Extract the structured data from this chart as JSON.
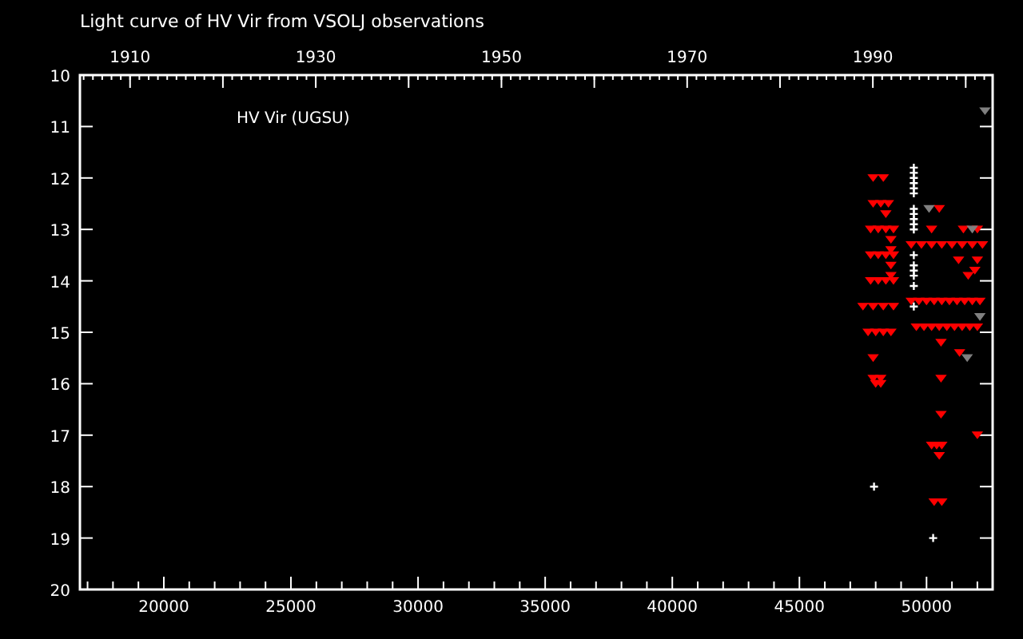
{
  "chart_data": {
    "type": "scatter",
    "title": "Light curve of HV Vir from VSOLJ observations",
    "annotations": [
      "HV Vir (UGSU)"
    ],
    "xlim": [
      16700,
      52600
    ],
    "xticks": [
      {
        "value": 17000,
        "label": null
      },
      {
        "value": 18000,
        "label": null
      },
      {
        "value": 19000,
        "label": null
      },
      {
        "value": 20000,
        "label": "20000"
      },
      {
        "value": 21000,
        "label": null
      },
      {
        "value": 22000,
        "label": null
      },
      {
        "value": 23000,
        "label": null
      },
      {
        "value": 24000,
        "label": null
      },
      {
        "value": 25000,
        "label": "25000"
      },
      {
        "value": 26000,
        "label": null
      },
      {
        "value": 27000,
        "label": null
      },
      {
        "value": 28000,
        "label": null
      },
      {
        "value": 29000,
        "label": null
      },
      {
        "value": 30000,
        "label": "30000"
      },
      {
        "value": 31000,
        "label": null
      },
      {
        "value": 32000,
        "label": null
      },
      {
        "value": 33000,
        "label": null
      },
      {
        "value": 34000,
        "label": null
      },
      {
        "value": 35000,
        "label": "35000"
      },
      {
        "value": 36000,
        "label": null
      },
      {
        "value": 37000,
        "label": null
      },
      {
        "value": 38000,
        "label": null
      },
      {
        "value": 39000,
        "label": null
      },
      {
        "value": 40000,
        "label": "40000"
      },
      {
        "value": 41000,
        "label": null
      },
      {
        "value": 42000,
        "label": null
      },
      {
        "value": 43000,
        "label": null
      },
      {
        "value": 44000,
        "label": null
      },
      {
        "value": 45000,
        "label": "45000"
      },
      {
        "value": 46000,
        "label": null
      },
      {
        "value": 47000,
        "label": null
      },
      {
        "value": 48000,
        "label": null
      },
      {
        "value": 49000,
        "label": null
      },
      {
        "value": 50000,
        "label": "50000"
      },
      {
        "value": 51000,
        "label": null
      },
      {
        "value": 52000,
        "label": null
      }
    ],
    "x2lim": [
      1904.6,
      2002.9
    ],
    "x2ticks": [
      {
        "value": 1910,
        "label": "1910"
      },
      {
        "value": 1920,
        "label": null
      },
      {
        "value": 1930,
        "label": "1930"
      },
      {
        "value": 1940,
        "label": null
      },
      {
        "value": 1950,
        "label": "1950"
      },
      {
        "value": 1960,
        "label": null
      },
      {
        "value": 1970,
        "label": "1970"
      },
      {
        "value": 1980,
        "label": null
      },
      {
        "value": 1990,
        "label": "1990"
      },
      {
        "value": 2000,
        "label": null
      }
    ],
    "ylim": [
      20,
      10
    ],
    "yticks": [
      10,
      11,
      12,
      13,
      14,
      15,
      16,
      17,
      18,
      19,
      20
    ],
    "grid": false,
    "series": [
      {
        "color": "#ff0000",
        "marker": "triangle",
        "x": [
          47900,
          48300,
          47900,
          48200,
          48500,
          48400,
          50500,
          47800,
          48100,
          48400,
          48700,
          50200,
          51450,
          52000,
          49400,
          49800,
          50200,
          50600,
          51000,
          51400,
          51800,
          52200,
          48600,
          48600,
          48600,
          48600,
          47800,
          48100,
          48400,
          48700,
          51260,
          51640,
          52000,
          51900,
          47800,
          48100,
          48400,
          48700,
          47500,
          47900,
          48300,
          48700,
          49400,
          49700,
          50000,
          50300,
          50600,
          50900,
          51200,
          51500,
          51800,
          52100,
          49600,
          49900,
          50200,
          50500,
          50800,
          51100,
          51400,
          51700,
          52000,
          47700,
          48000,
          48300,
          48600,
          47900,
          48200,
          48000,
          47900,
          48200,
          50570,
          51300,
          50570,
          50570,
          50200,
          50400,
          50600,
          50500,
          52000,
          50300,
          50600
        ],
        "values": [
          12.0,
          12.0,
          12.5,
          12.5,
          12.5,
          12.7,
          12.6,
          13.0,
          13.0,
          13.0,
          13.0,
          13.0,
          13.0,
          13.0,
          13.3,
          13.3,
          13.3,
          13.3,
          13.3,
          13.3,
          13.3,
          13.3,
          13.2,
          13.4,
          13.7,
          13.9,
          13.5,
          13.5,
          13.5,
          13.5,
          13.6,
          13.9,
          13.6,
          13.8,
          14.0,
          14.0,
          14.0,
          14.0,
          14.5,
          14.5,
          14.5,
          14.5,
          14.4,
          14.4,
          14.4,
          14.4,
          14.4,
          14.4,
          14.4,
          14.4,
          14.4,
          14.4,
          14.9,
          14.9,
          14.9,
          14.9,
          14.9,
          14.9,
          14.9,
          14.9,
          14.9,
          15.0,
          15.0,
          15.0,
          15.0,
          15.5,
          16.0,
          16.0,
          15.9,
          15.9,
          15.2,
          15.4,
          15.9,
          16.6,
          17.2,
          17.2,
          17.2,
          17.4,
          17.0,
          18.3,
          18.3
        ]
      },
      {
        "color": "#ffffff",
        "marker": "cross",
        "x": [
          49500,
          49500,
          49500,
          49500,
          49500,
          49500,
          49500,
          49500,
          49500,
          49500,
          49500,
          49500,
          49500,
          49500,
          49500,
          49500,
          49500,
          47935,
          50260
        ],
        "values": [
          11.8,
          11.9,
          12.0,
          12.1,
          12.2,
          12.3,
          12.6,
          12.7,
          12.8,
          12.9,
          13.0,
          13.5,
          13.7,
          13.8,
          13.9,
          14.1,
          14.5,
          18.0,
          19.0
        ]
      },
      {
        "color": "#808080",
        "marker": "triangle",
        "x": [
          52300,
          51800,
          52100,
          50100,
          51600
        ],
        "values": [
          10.7,
          13.0,
          14.7,
          12.6,
          15.5
        ]
      }
    ]
  }
}
